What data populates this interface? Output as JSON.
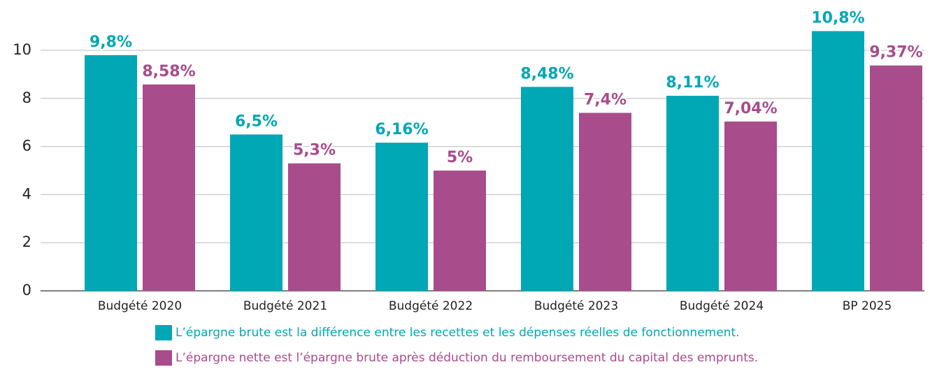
{
  "chart_data": {
    "type": "bar",
    "categories": [
      "Budgété 2020",
      "Budgété 2021",
      "Budgété 2022",
      "Budgété 2023",
      "Budgété 2024",
      "BP 2025"
    ],
    "series": [
      {
        "name": "L’épargne brute est la différence entre les recettes et les dépenses réelles de fonctionnement.",
        "color": "#00a7b5",
        "values": [
          9.8,
          6.5,
          6.16,
          8.48,
          8.11,
          10.8
        ],
        "value_labels": [
          "9,8%",
          "6,5%",
          "6,16%",
          "8,48%",
          "8,11%",
          "10,8%"
        ]
      },
      {
        "name": "L’épargne nette est l’épargne brute après déduction du remboursement du capital des emprunts.",
        "color": "#a84c8c",
        "values": [
          8.58,
          5.3,
          5,
          7.4,
          7.04,
          9.37
        ],
        "value_labels": [
          "8,58%",
          "5,3%",
          "5%",
          "7,4%",
          "7,04%",
          "9,37%"
        ]
      }
    ],
    "ylim": [
      0,
      11
    ],
    "yticks": [
      0,
      2,
      4,
      6,
      8,
      10
    ],
    "grid": true,
    "legend": "bottom"
  }
}
